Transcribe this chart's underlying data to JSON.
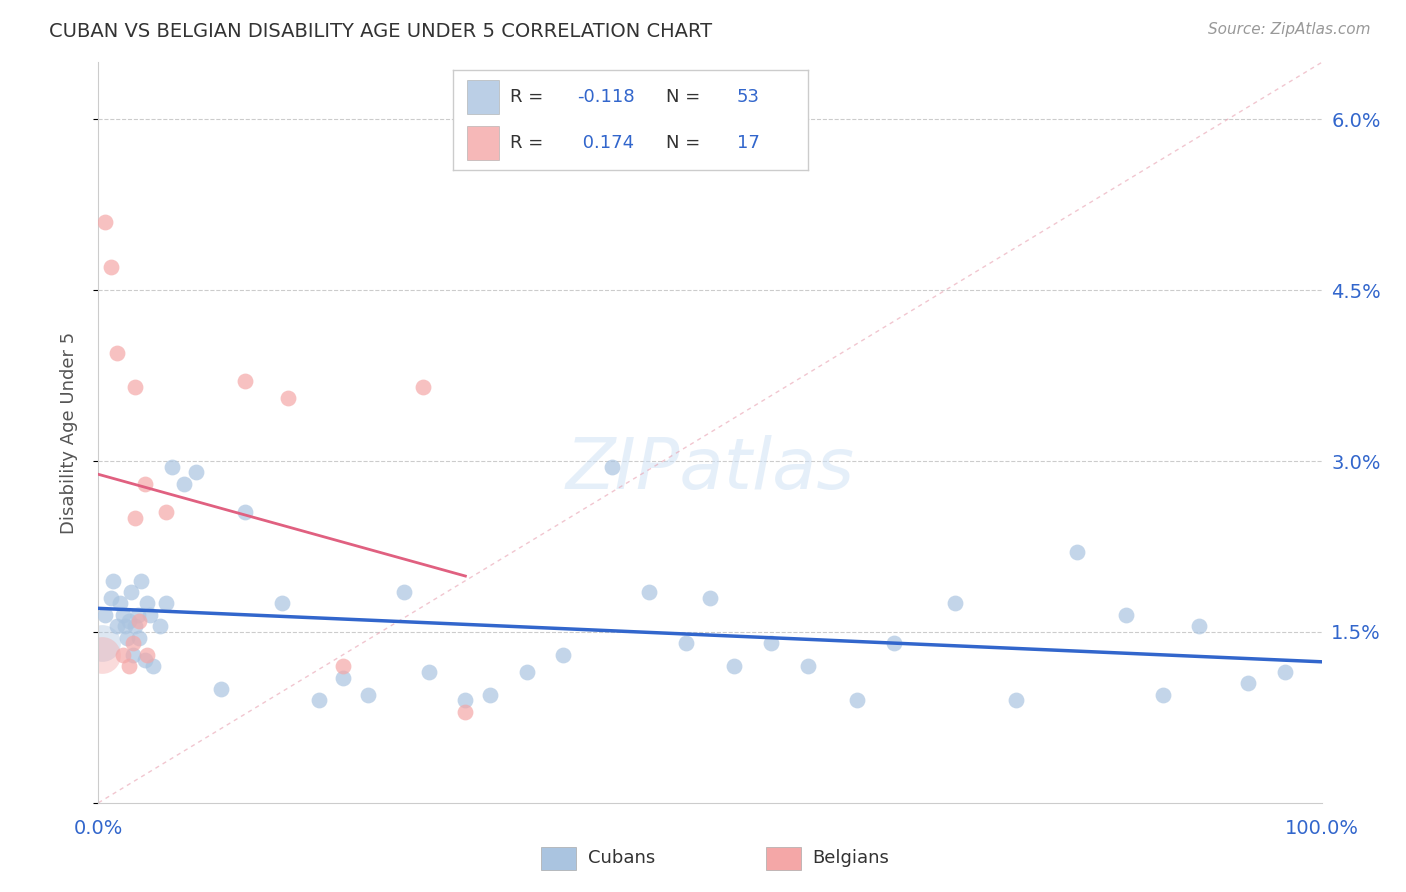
{
  "title": "CUBAN VS BELGIAN DISABILITY AGE UNDER 5 CORRELATION CHART",
  "source": "Source: ZipAtlas.com",
  "ylabel": "Disability Age Under 5",
  "xlim": [
    0.0,
    1.0
  ],
  "ylim": [
    0.0,
    0.065
  ],
  "cuban_R": -0.118,
  "cuban_N": 53,
  "belgian_R": 0.174,
  "belgian_N": 17,
  "cuban_color": "#aac4e0",
  "belgian_color": "#f4a7a7",
  "cuban_line_color": "#3266cc",
  "belgian_line_color": "#e06080",
  "ref_line_color": "#e8a0b0",
  "grid_color": "#cccccc",
  "legend_text_color": "#3266cc",
  "legend_border_color": "#cccccc",
  "cuban_x": [
    0.005,
    0.01,
    0.012,
    0.015,
    0.018,
    0.02,
    0.022,
    0.023,
    0.025,
    0.027,
    0.028,
    0.03,
    0.032,
    0.033,
    0.035,
    0.038,
    0.04,
    0.042,
    0.045,
    0.05,
    0.055,
    0.06,
    0.07,
    0.08,
    0.1,
    0.12,
    0.15,
    0.18,
    0.2,
    0.22,
    0.25,
    0.27,
    0.3,
    0.32,
    0.35,
    0.38,
    0.42,
    0.45,
    0.48,
    0.5,
    0.52,
    0.55,
    0.58,
    0.62,
    0.65,
    0.7,
    0.75,
    0.8,
    0.84,
    0.87,
    0.9,
    0.94,
    0.97
  ],
  "cuban_y": [
    0.0165,
    0.018,
    0.0195,
    0.0155,
    0.0175,
    0.0165,
    0.0155,
    0.0145,
    0.016,
    0.0185,
    0.013,
    0.0155,
    0.0165,
    0.0145,
    0.0195,
    0.0125,
    0.0175,
    0.0165,
    0.012,
    0.0155,
    0.0175,
    0.0295,
    0.028,
    0.029,
    0.01,
    0.0255,
    0.0175,
    0.009,
    0.011,
    0.0095,
    0.0185,
    0.0115,
    0.009,
    0.0095,
    0.0115,
    0.013,
    0.0295,
    0.0185,
    0.014,
    0.018,
    0.012,
    0.014,
    0.012,
    0.009,
    0.014,
    0.0175,
    0.009,
    0.022,
    0.0165,
    0.0095,
    0.0155,
    0.0105,
    0.0115
  ],
  "belgian_x": [
    0.005,
    0.01,
    0.015,
    0.02,
    0.025,
    0.028,
    0.03,
    0.033,
    0.038,
    0.04,
    0.055,
    0.12,
    0.155,
    0.2,
    0.265,
    0.3,
    0.03
  ],
  "belgian_y": [
    0.051,
    0.047,
    0.0395,
    0.013,
    0.012,
    0.014,
    0.0365,
    0.016,
    0.028,
    0.013,
    0.0255,
    0.037,
    0.0355,
    0.012,
    0.0365,
    0.008,
    0.025
  ],
  "ref_line_x": [
    0.0,
    1.0
  ],
  "ref_line_y": [
    0.0,
    0.065
  ]
}
